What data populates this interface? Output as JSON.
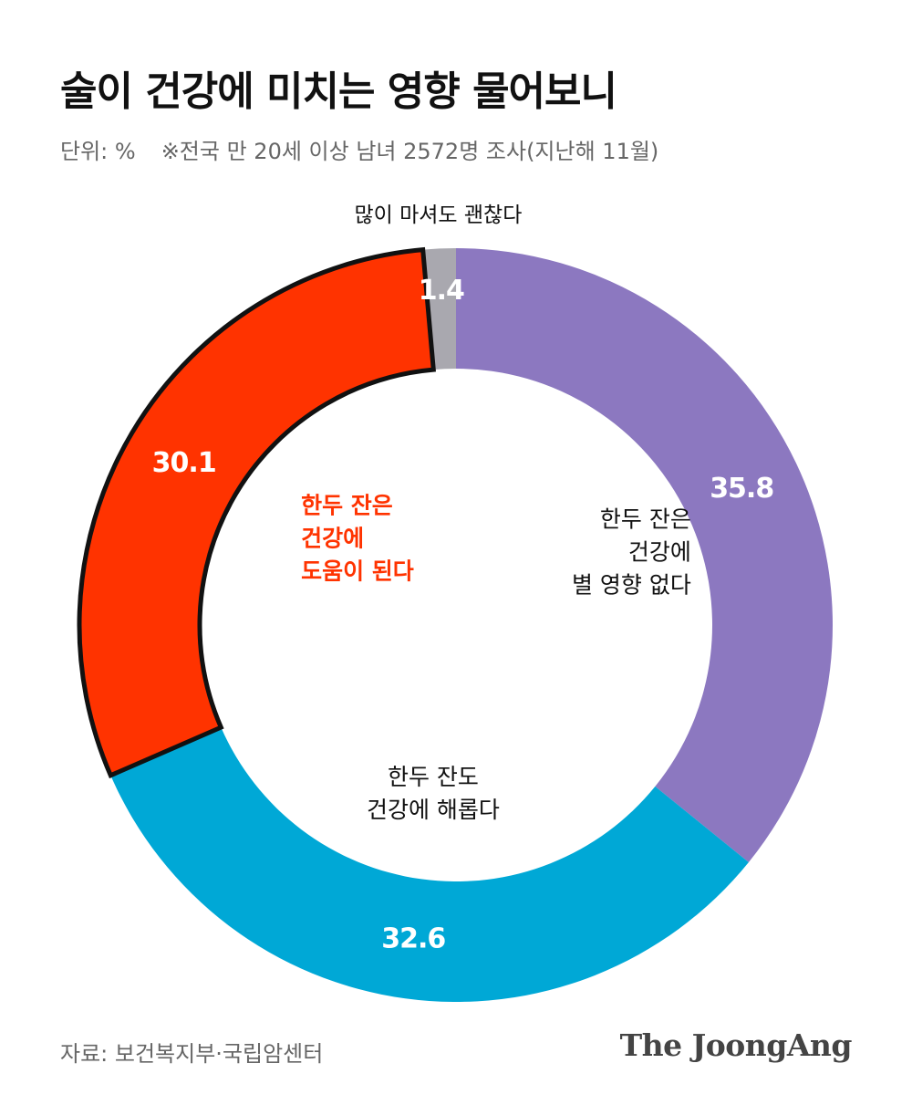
{
  "title": "술이 건강에 미치는 영향 물어보니",
  "subtitle": {
    "unit": "단위: %",
    "note": "※전국 만 20세 이상 남녀 2572명 조사(지난해 11월)"
  },
  "chart_data": {
    "type": "pie",
    "donut": true,
    "slices": [
      {
        "value": 35.8,
        "label_lines": [
          "한두 잔은",
          "건강에",
          "별 영향 없다"
        ],
        "color": "#8C78C0",
        "value_text": "35.8"
      },
      {
        "value": 32.6,
        "label_lines": [
          "한두 잔도",
          "건강에 해롭다"
        ],
        "color": "#00A8D6",
        "value_text": "32.6"
      },
      {
        "value": 30.1,
        "label_lines": [
          "한두 잔은",
          "건강에",
          "도움이 된다"
        ],
        "color": "#FF3300",
        "value_text": "30.1",
        "highlight": true
      },
      {
        "value": 1.4,
        "label_lines": [
          "많이 마셔도 괜찮다"
        ],
        "color": "#A9A8AF",
        "value_text": "1.4"
      }
    ]
  },
  "footer": {
    "source": "자료: 보건복지부·국립암센터",
    "brand": "The JoongAng"
  }
}
